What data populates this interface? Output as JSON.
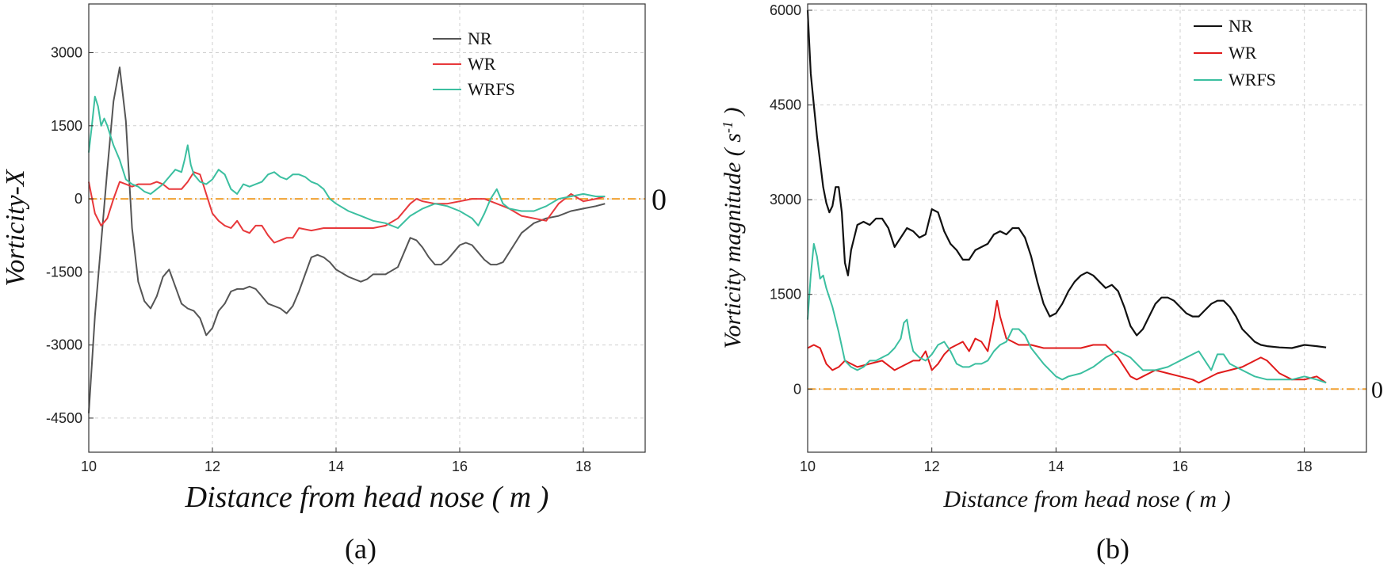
{
  "chart_data": [
    {
      "type": "line",
      "panel_label": "(a)",
      "xlabel": "Distance from head nose ( m )",
      "ylabel": "Vorticity-X",
      "xlim": [
        10,
        19
      ],
      "ylim": [
        -5200,
        4000
      ],
      "xticks": [
        10,
        12,
        14,
        16,
        18
      ],
      "yticks": [
        -4500,
        -3000,
        -1500,
        0,
        1500,
        3000
      ],
      "zero_line_label": "0",
      "grid": true,
      "legend": "top-right",
      "series": [
        {
          "name": "NR",
          "color": "#555555",
          "x": [
            10.0,
            10.1,
            10.2,
            10.3,
            10.4,
            10.5,
            10.6,
            10.7,
            10.8,
            10.9,
            11.0,
            11.1,
            11.2,
            11.3,
            11.4,
            11.5,
            11.6,
            11.7,
            11.8,
            11.9,
            12.0,
            12.1,
            12.2,
            12.3,
            12.4,
            12.5,
            12.6,
            12.7,
            12.8,
            12.9,
            13.0,
            13.1,
            13.2,
            13.3,
            13.4,
            13.5,
            13.6,
            13.7,
            13.8,
            13.9,
            14.0,
            14.2,
            14.4,
            14.5,
            14.6,
            14.8,
            15.0,
            15.1,
            15.2,
            15.3,
            15.4,
            15.5,
            15.6,
            15.7,
            15.8,
            15.9,
            16.0,
            16.1,
            16.2,
            16.3,
            16.4,
            16.5,
            16.6,
            16.7,
            16.8,
            16.9,
            17.0,
            17.2,
            17.4,
            17.6,
            17.8,
            18.0,
            18.2,
            18.35
          ],
          "y": [
            -4400,
            -2400,
            -900,
            600,
            2000,
            2700,
            1600,
            -600,
            -1700,
            -2100,
            -2250,
            -2000,
            -1600,
            -1450,
            -1800,
            -2150,
            -2250,
            -2300,
            -2450,
            -2800,
            -2650,
            -2300,
            -2150,
            -1900,
            -1850,
            -1850,
            -1800,
            -1850,
            -2000,
            -2150,
            -2200,
            -2250,
            -2350,
            -2200,
            -1900,
            -1550,
            -1200,
            -1150,
            -1200,
            -1300,
            -1450,
            -1600,
            -1700,
            -1650,
            -1550,
            -1550,
            -1400,
            -1100,
            -800,
            -850,
            -1000,
            -1200,
            -1350,
            -1350,
            -1250,
            -1100,
            -950,
            -900,
            -950,
            -1100,
            -1250,
            -1350,
            -1350,
            -1300,
            -1100,
            -900,
            -700,
            -500,
            -400,
            -350,
            -250,
            -200,
            -150,
            -100
          ]
        },
        {
          "name": "WR",
          "color": "#e8383b",
          "x": [
            10.0,
            10.1,
            10.2,
            10.3,
            10.4,
            10.5,
            10.6,
            10.7,
            10.8,
            11.0,
            11.1,
            11.2,
            11.3,
            11.5,
            11.6,
            11.7,
            11.8,
            11.9,
            12.0,
            12.1,
            12.2,
            12.3,
            12.4,
            12.5,
            12.6,
            12.7,
            12.8,
            12.9,
            13.0,
            13.1,
            13.2,
            13.3,
            13.4,
            13.6,
            13.8,
            14.0,
            14.2,
            14.4,
            14.6,
            14.8,
            15.0,
            15.2,
            15.3,
            15.4,
            15.6,
            15.8,
            16.0,
            16.2,
            16.4,
            16.6,
            16.8,
            17.0,
            17.2,
            17.4,
            17.6,
            17.8,
            18.0,
            18.2,
            18.35
          ],
          "y": [
            350,
            -300,
            -550,
            -400,
            0,
            350,
            300,
            250,
            300,
            300,
            350,
            300,
            200,
            200,
            350,
            550,
            500,
            100,
            -300,
            -450,
            -550,
            -600,
            -450,
            -650,
            -700,
            -550,
            -550,
            -750,
            -900,
            -850,
            -800,
            -800,
            -600,
            -650,
            -600,
            -600,
            -600,
            -600,
            -600,
            -550,
            -400,
            -100,
            0,
            -50,
            -100,
            -100,
            -50,
            0,
            0,
            -100,
            -200,
            -350,
            -400,
            -450,
            -100,
            100,
            -50,
            0,
            50
          ]
        },
        {
          "name": "WRFS",
          "color": "#3bbfa0",
          "x": [
            10.0,
            10.05,
            10.1,
            10.15,
            10.2,
            10.25,
            10.3,
            10.4,
            10.5,
            10.6,
            10.7,
            10.8,
            10.9,
            11.0,
            11.1,
            11.2,
            11.3,
            11.4,
            11.5,
            11.55,
            11.6,
            11.65,
            11.7,
            11.8,
            11.9,
            12.0,
            12.1,
            12.2,
            12.3,
            12.4,
            12.5,
            12.6,
            12.7,
            12.8,
            12.9,
            13.0,
            13.1,
            13.2,
            13.3,
            13.4,
            13.5,
            13.6,
            13.7,
            13.8,
            13.9,
            14.0,
            14.2,
            14.4,
            14.6,
            14.8,
            15.0,
            15.2,
            15.4,
            15.6,
            15.8,
            16.0,
            16.2,
            16.3,
            16.4,
            16.5,
            16.6,
            16.7,
            16.8,
            17.0,
            17.2,
            17.4,
            17.6,
            17.8,
            18.0,
            18.2,
            18.35
          ],
          "y": [
            950,
            1500,
            2100,
            1900,
            1500,
            1650,
            1500,
            1100,
            800,
            400,
            300,
            250,
            150,
            100,
            200,
            300,
            450,
            600,
            550,
            800,
            1100,
            700,
            500,
            350,
            300,
            400,
            600,
            500,
            200,
            100,
            300,
            250,
            300,
            350,
            500,
            550,
            450,
            400,
            500,
            500,
            450,
            350,
            300,
            200,
            0,
            -100,
            -250,
            -350,
            -450,
            -500,
            -600,
            -350,
            -200,
            -100,
            -150,
            -250,
            -400,
            -550,
            -300,
            0,
            200,
            -100,
            -200,
            -250,
            -250,
            -150,
            0,
            50,
            100,
            50,
            50
          ]
        }
      ]
    },
    {
      "type": "line",
      "panel_label": "(b)",
      "xlabel": "Distance from head nose ( m )",
      "ylabel": "Vorticity magnitude ( s",
      "ylabel_sup": "-1",
      "ylabel_end": " )",
      "xlim": [
        10,
        19
      ],
      "ylim": [
        -1000,
        6100
      ],
      "xticks": [
        10,
        12,
        14,
        16,
        18
      ],
      "yticks": [
        0,
        1500,
        3000,
        4500,
        6000
      ],
      "zero_line_label": "0",
      "grid": true,
      "legend": "top-right",
      "series": [
        {
          "name": "NR",
          "color": "#111111",
          "x": [
            10.0,
            10.05,
            10.1,
            10.15,
            10.2,
            10.25,
            10.3,
            10.35,
            10.4,
            10.45,
            10.5,
            10.55,
            10.6,
            10.65,
            10.7,
            10.8,
            10.9,
            11.0,
            11.1,
            11.2,
            11.3,
            11.4,
            11.5,
            11.6,
            11.7,
            11.8,
            11.9,
            12.0,
            12.1,
            12.2,
            12.3,
            12.4,
            12.5,
            12.6,
            12.7,
            12.8,
            12.9,
            13.0,
            13.1,
            13.2,
            13.3,
            13.4,
            13.5,
            13.6,
            13.7,
            13.8,
            13.9,
            14.0,
            14.1,
            14.2,
            14.3,
            14.4,
            14.5,
            14.6,
            14.7,
            14.8,
            14.9,
            15.0,
            15.1,
            15.2,
            15.3,
            15.4,
            15.5,
            15.6,
            15.7,
            15.8,
            15.9,
            16.0,
            16.1,
            16.2,
            16.3,
            16.4,
            16.5,
            16.6,
            16.7,
            16.8,
            16.9,
            17.0,
            17.1,
            17.2,
            17.3,
            17.4,
            17.6,
            17.8,
            18.0,
            18.2,
            18.35
          ],
          "y": [
            6000,
            5000,
            4500,
            4000,
            3600,
            3200,
            2950,
            2800,
            2900,
            3200,
            3200,
            2800,
            2000,
            1800,
            2200,
            2600,
            2650,
            2600,
            2700,
            2700,
            2550,
            2250,
            2400,
            2550,
            2500,
            2400,
            2450,
            2850,
            2800,
            2500,
            2300,
            2200,
            2050,
            2050,
            2200,
            2250,
            2300,
            2450,
            2500,
            2450,
            2550,
            2550,
            2400,
            2100,
            1700,
            1350,
            1150,
            1200,
            1350,
            1550,
            1700,
            1800,
            1850,
            1800,
            1700,
            1600,
            1650,
            1550,
            1300,
            1000,
            850,
            950,
            1150,
            1350,
            1450,
            1450,
            1400,
            1300,
            1200,
            1150,
            1150,
            1250,
            1350,
            1400,
            1400,
            1300,
            1150,
            950,
            850,
            750,
            700,
            680,
            660,
            650,
            700,
            680,
            660
          ]
        },
        {
          "name": "WR",
          "color": "#e01b1b",
          "x": [
            10.0,
            10.1,
            10.2,
            10.3,
            10.4,
            10.5,
            10.6,
            10.7,
            10.8,
            11.0,
            11.2,
            11.4,
            11.5,
            11.6,
            11.7,
            11.8,
            11.9,
            12.0,
            12.1,
            12.2,
            12.3,
            12.4,
            12.5,
            12.6,
            12.7,
            12.8,
            12.9,
            13.0,
            13.05,
            13.1,
            13.2,
            13.3,
            13.4,
            13.6,
            13.8,
            14.0,
            14.2,
            14.4,
            14.6,
            14.8,
            15.0,
            15.2,
            15.3,
            15.4,
            15.6,
            15.8,
            16.0,
            16.2,
            16.3,
            16.4,
            16.6,
            16.8,
            17.0,
            17.2,
            17.3,
            17.4,
            17.6,
            17.8,
            18.0,
            18.2,
            18.35
          ],
          "y": [
            650,
            700,
            650,
            400,
            300,
            350,
            450,
            400,
            350,
            400,
            450,
            300,
            350,
            400,
            450,
            450,
            600,
            300,
            400,
            550,
            650,
            700,
            750,
            600,
            800,
            750,
            600,
            1100,
            1400,
            1150,
            800,
            750,
            700,
            700,
            650,
            650,
            650,
            650,
            700,
            700,
            500,
            200,
            150,
            200,
            300,
            250,
            200,
            150,
            100,
            150,
            250,
            300,
            350,
            450,
            500,
            450,
            250,
            150,
            150,
            200,
            100
          ]
        },
        {
          "name": "WRFS",
          "color": "#3bbfa0",
          "x": [
            10.0,
            10.05,
            10.1,
            10.15,
            10.2,
            10.25,
            10.3,
            10.4,
            10.5,
            10.6,
            10.7,
            10.8,
            10.9,
            11.0,
            11.1,
            11.2,
            11.3,
            11.4,
            11.5,
            11.55,
            11.6,
            11.65,
            11.7,
            11.8,
            11.9,
            12.0,
            12.1,
            12.2,
            12.3,
            12.4,
            12.5,
            12.6,
            12.7,
            12.8,
            12.9,
            13.0,
            13.1,
            13.2,
            13.3,
            13.4,
            13.5,
            13.6,
            13.8,
            14.0,
            14.1,
            14.2,
            14.4,
            14.6,
            14.8,
            15.0,
            15.2,
            15.4,
            15.6,
            15.8,
            16.0,
            16.2,
            16.3,
            16.4,
            16.5,
            16.6,
            16.7,
            16.8,
            17.0,
            17.2,
            17.4,
            17.6,
            17.8,
            18.0,
            18.2,
            18.35
          ],
          "y": [
            1100,
            1800,
            2300,
            2100,
            1750,
            1800,
            1600,
            1300,
            900,
            450,
            350,
            300,
            350,
            450,
            450,
            500,
            550,
            650,
            800,
            1050,
            1100,
            800,
            600,
            500,
            450,
            550,
            700,
            750,
            600,
            400,
            350,
            350,
            400,
            400,
            450,
            600,
            700,
            750,
            950,
            950,
            850,
            650,
            400,
            200,
            150,
            200,
            250,
            350,
            500,
            600,
            500,
            300,
            300,
            350,
            450,
            550,
            600,
            450,
            300,
            550,
            550,
            400,
            300,
            200,
            150,
            150,
            150,
            200,
            150,
            100
          ]
        }
      ]
    }
  ]
}
